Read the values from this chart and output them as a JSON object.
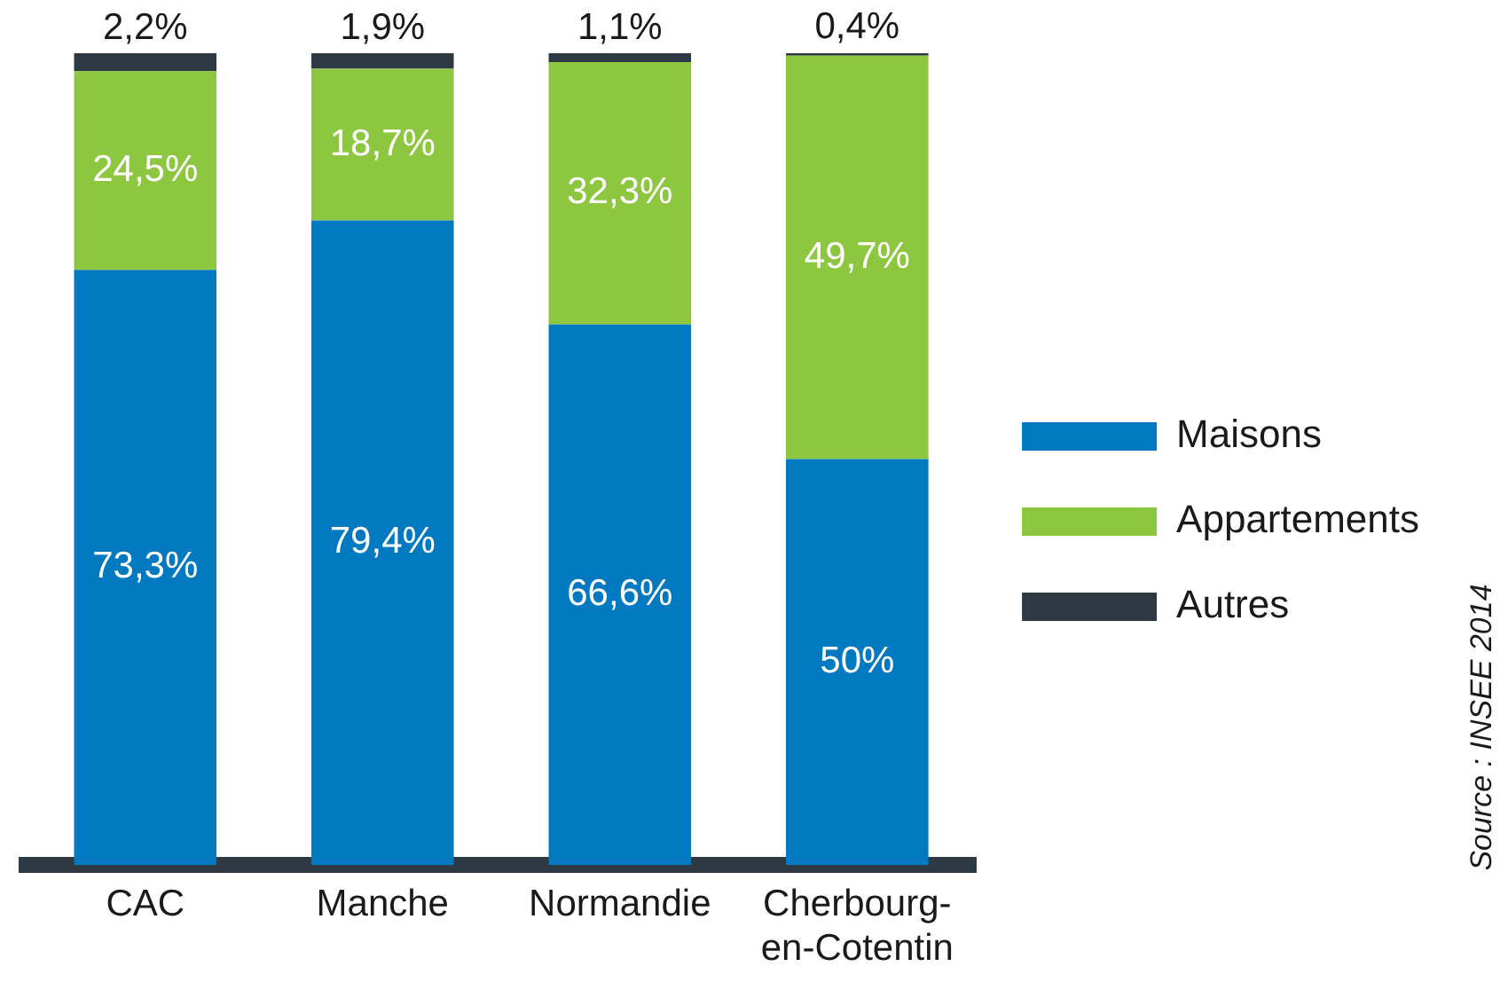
{
  "chart_data": {
    "type": "bar",
    "stacked": true,
    "categories": [
      "CAC",
      "Manche",
      "Normandie",
      "Cherbourg-en-Cotentin"
    ],
    "series": [
      {
        "name": "Maisons",
        "color": "#0079c1",
        "values": [
          73.3,
          79.4,
          66.6,
          50
        ],
        "value_labels": [
          "73,3%",
          "79,4%",
          "66,6%",
          "50%"
        ]
      },
      {
        "name": "Appartements",
        "color": "#8dc63f",
        "values": [
          24.5,
          18.7,
          32.3,
          49.7
        ],
        "value_labels": [
          "24,5%",
          "18,7%",
          "32,3%",
          "49,7%"
        ]
      },
      {
        "name": "Autres",
        "color": "#2d3a44",
        "values": [
          2.2,
          1.9,
          1.1,
          0.4
        ],
        "value_labels": [
          "2,2%",
          "1,9%",
          "1,1%",
          "0,4%"
        ]
      }
    ],
    "ylim": [
      0,
      100
    ],
    "tick_labels": "x",
    "grid": false,
    "legend": "right",
    "annotations": [
      "Source : INSEE 2014"
    ]
  }
}
